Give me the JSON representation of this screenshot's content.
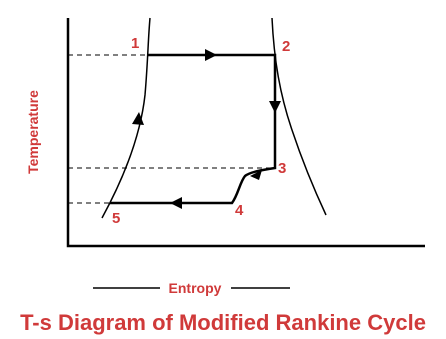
{
  "title": "T-s Diagram of Modified Rankine Cycle",
  "axes": {
    "y_label": "Temperature",
    "x_label": "Entropy"
  },
  "points": [
    "1",
    "2",
    "3",
    "4",
    "5"
  ]
}
